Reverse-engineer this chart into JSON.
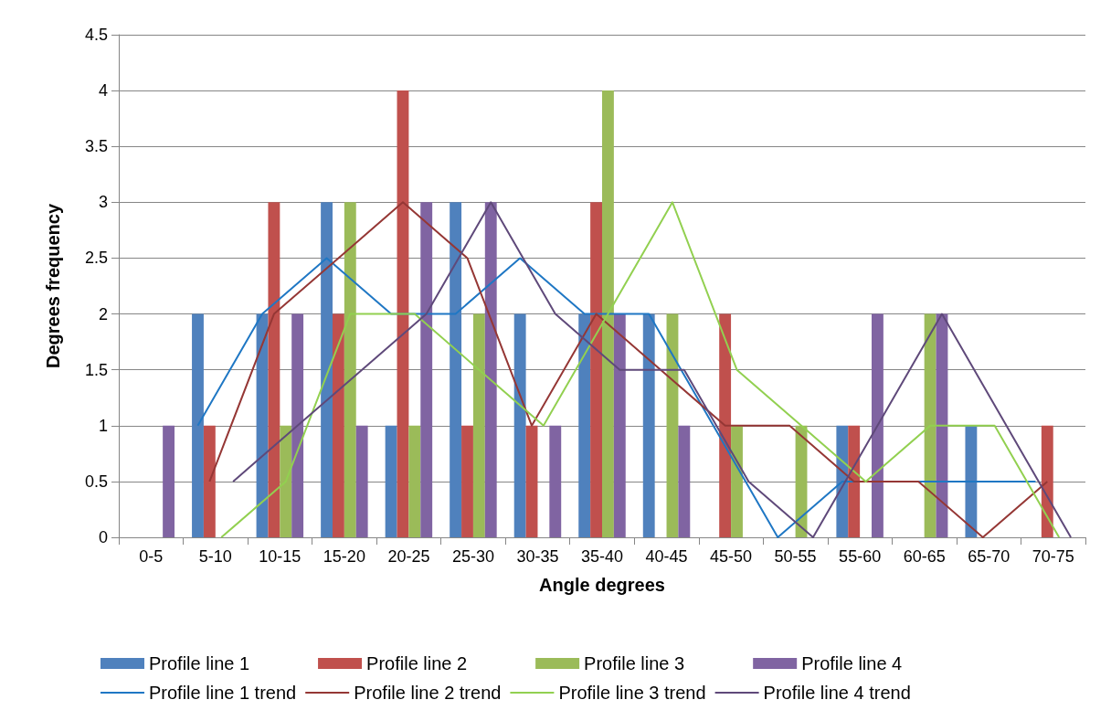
{
  "chart_data": {
    "type": "bar",
    "xlabel": "Angle degrees",
    "ylabel": "Degrees frequency",
    "categories": [
      "0-5",
      "5-10",
      "10-15",
      "15-20",
      "20-25",
      "25-30",
      "30-35",
      "35-40",
      "40-45",
      "45-50",
      "50-55",
      "55-60",
      "60-65",
      "65-70",
      "70-75"
    ],
    "series": [
      {
        "name": "Profile line 1",
        "color": "#4f81bd",
        "values": [
          0,
          2,
          2,
          3,
          1,
          3,
          2,
          2,
          2,
          0,
          0,
          1,
          0,
          1,
          0
        ]
      },
      {
        "name": "Profile line 2",
        "color": "#c0504d",
        "values": [
          0,
          1,
          3,
          2,
          4,
          1,
          1,
          3,
          0,
          2,
          0,
          1,
          0,
          0,
          1
        ]
      },
      {
        "name": "Profile line 3",
        "color": "#9bbb59",
        "values": [
          0,
          0,
          1,
          3,
          1,
          2,
          0,
          4,
          2,
          1,
          1,
          0,
          2,
          0,
          0
        ]
      },
      {
        "name": "Profile line 4",
        "color": "#8064a2",
        "values": [
          1,
          0,
          2,
          1,
          3,
          3,
          1,
          2,
          1,
          0,
          0,
          2,
          2,
          0,
          0
        ]
      },
      {
        "name": "Profile line 1 trend",
        "type": "line",
        "color": "#1f77c4",
        "values": [
          null,
          1,
          2,
          2.5,
          2,
          2,
          2.5,
          2,
          2,
          1,
          0,
          0.5,
          0.5,
          0.5,
          0.5
        ]
      },
      {
        "name": "Profile line 2 trend",
        "type": "line",
        "color": "#953735",
        "values": [
          null,
          0.5,
          2,
          2.5,
          3,
          2.5,
          1,
          2,
          1.5,
          1,
          1,
          0.5,
          0.5,
          0,
          0.5
        ]
      },
      {
        "name": "Profile line 3 trend",
        "type": "line",
        "color": "#92d050",
        "values": [
          null,
          0,
          0.5,
          2,
          2,
          1.5,
          1,
          2,
          3,
          1.5,
          1,
          0.5,
          1,
          1,
          0
        ]
      },
      {
        "name": "Profile line 4 trend",
        "type": "line",
        "color": "#5f497a",
        "values": [
          null,
          0.5,
          1,
          1.5,
          2,
          3,
          2,
          1.5,
          1.5,
          0.5,
          0,
          1,
          2,
          1,
          0
        ]
      }
    ],
    "ylim": [
      0,
      4.5
    ],
    "yticks": [
      0,
      0.5,
      1,
      1.5,
      2,
      2.5,
      3,
      3.5,
      4,
      4.5
    ],
    "grid": "y",
    "legend": "bottom",
    "marker": "none",
    "line_style": "solid"
  }
}
